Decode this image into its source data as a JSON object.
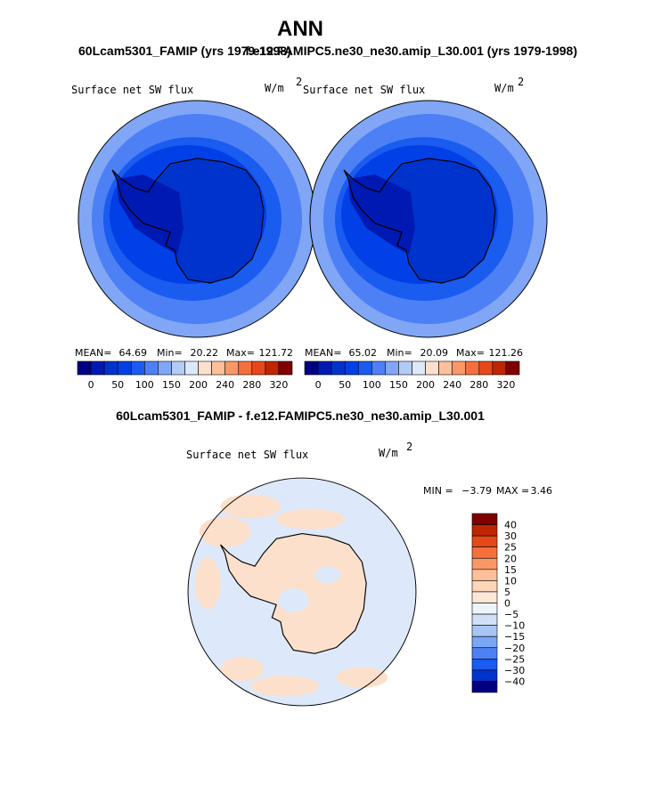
{
  "title": "ANN",
  "panels": [
    {
      "subtitle": "60Lcam5301_FAMIP (yrs 1979-1998)",
      "field": "Surface net SW flux",
      "units": "W/m",
      "units_exp": "2",
      "stats": [
        "MEAN=",
        "64.69",
        "Min=",
        "20.22",
        "Max=",
        "121.72"
      ]
    },
    {
      "subtitle": "f.e12.FAMIPC5.ne30_ne30.amip_L30.001 (yrs 1979-1998)",
      "field": "Surface net SW flux",
      "units": "W/m",
      "units_exp": "2",
      "stats": [
        "MEAN=",
        "65.02",
        "Min=",
        "20.09",
        "Max=",
        "121.26"
      ]
    }
  ],
  "colorbar": {
    "labels": [
      "0",
      "50",
      "100",
      "150",
      "200",
      "240",
      "280",
      "320"
    ],
    "colors": [
      "#000080",
      "#0019b3",
      "#0033cc",
      "#0040e6",
      "#1a5cf0",
      "#4d80f5",
      "#80a6f5",
      "#b3ccf5",
      "#dde9fa",
      "#fde0cc",
      "#fcbf99",
      "#f99866",
      "#f56f3d",
      "#e6481a",
      "#bf2600",
      "#800000"
    ]
  },
  "diff": {
    "title": "60Lcam5301_FAMIP - f.e12.FAMIPC5.ne30_ne30.amip_L30.001",
    "field": "Surface net SW flux",
    "units": "W/m",
    "units_exp": "2",
    "stats": [
      "MIN =",
      "−3.79",
      "MAX =",
      "3.46"
    ],
    "labels": [
      "40",
      "30",
      "25",
      "20",
      "15",
      "10",
      "5",
      "0",
      "−5",
      "−10",
      "−15",
      "−20",
      "−25",
      "−30",
      "−40"
    ],
    "colors": [
      "#800000",
      "#bf2600",
      "#e6481a",
      "#f56f3d",
      "#f99866",
      "#fcbf99",
      "#fdd5b8",
      "#fde8d8",
      "#eef4fb",
      "#cfe0f7",
      "#a8c5f5",
      "#7aa6f5",
      "#4d80f5",
      "#1a5cf0",
      "#0033cc",
      "#000080"
    ]
  }
}
